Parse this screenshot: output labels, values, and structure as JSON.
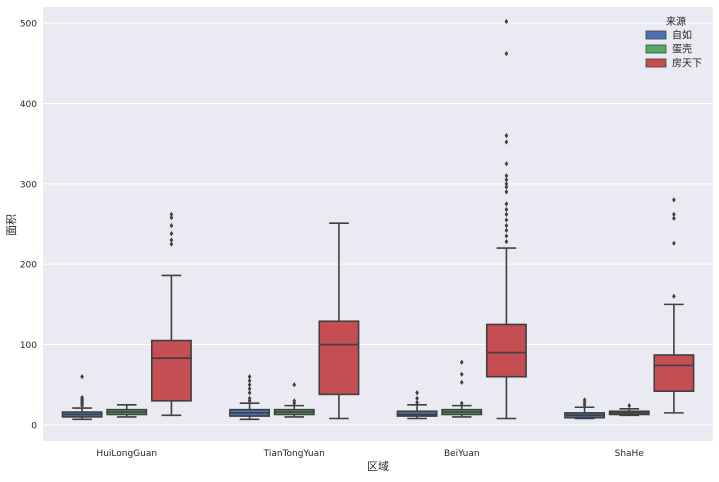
{
  "chart_data": {
    "type": "boxplot",
    "title": "",
    "xlabel": "区域",
    "ylabel": "面积",
    "ylim": [
      -20,
      520
    ],
    "yticks": [
      0,
      100,
      200,
      300,
      400,
      500
    ],
    "ytick_labels": [
      "0",
      "100",
      "200",
      "300",
      "400",
      "500"
    ],
    "grid": true,
    "legend_title": "来源",
    "legend_position": "top-right",
    "categories": [
      "HuiLongGuan",
      "TianTongYuan",
      "BeiYuan",
      "ShaHe"
    ],
    "series": [
      {
        "name": "自如",
        "color": "#4c72b0",
        "boxes": [
          {
            "min": 7,
            "q1": 10,
            "median": 13,
            "q3": 16,
            "max": 21,
            "outliers": [
              24,
              26,
              28,
              30,
              32,
              34,
              60
            ]
          },
          {
            "min": 7,
            "q1": 11,
            "median": 15,
            "q3": 19,
            "max": 27,
            "outliers": [
              30,
              33,
              40,
              45,
              50,
              55,
              60
            ]
          },
          {
            "min": 8,
            "q1": 11,
            "median": 13,
            "q3": 17,
            "max": 25,
            "outliers": [
              28,
              33,
              40
            ]
          },
          {
            "min": 8,
            "q1": 9,
            "median": 12,
            "q3": 15,
            "max": 22,
            "outliers": [
              25,
              28,
              31
            ]
          }
        ]
      },
      {
        "name": "蛋壳",
        "color": "#55a868",
        "boxes": [
          {
            "min": 10,
            "q1": 13,
            "median": 16,
            "q3": 19,
            "max": 25,
            "outliers": []
          },
          {
            "min": 10,
            "q1": 13,
            "median": 16,
            "q3": 19,
            "max": 24,
            "outliers": [
              27,
              30,
              50
            ]
          },
          {
            "min": 10,
            "q1": 13,
            "median": 16,
            "q3": 19,
            "max": 24,
            "outliers": [
              27,
              53,
              63,
              78
            ]
          },
          {
            "min": 12,
            "q1": 13,
            "median": 15,
            "q3": 17,
            "max": 20,
            "outliers": [
              24
            ]
          }
        ]
      },
      {
        "name": "房天下",
        "color": "#c44e52",
        "boxes": [
          {
            "min": 12,
            "q1": 30,
            "median": 83,
            "q3": 105,
            "max": 186,
            "outliers": [
              225,
              230,
              238,
              248,
              258,
              262
            ]
          },
          {
            "min": 8,
            "q1": 38,
            "median": 100,
            "q3": 129,
            "max": 251,
            "outliers": []
          },
          {
            "min": 8,
            "q1": 60,
            "median": 90,
            "q3": 125,
            "max": 220,
            "outliers": [
              228,
              235,
              242,
              248,
              255,
              262,
              268,
              275,
              290,
              296,
              300,
              305,
              310,
              325,
              352,
              360,
              462,
              502
            ]
          },
          {
            "min": 15,
            "q1": 42,
            "median": 74,
            "q3": 87,
            "max": 150,
            "outliers": [
              160,
              226,
              257,
              262,
              280
            ]
          }
        ]
      }
    ]
  }
}
